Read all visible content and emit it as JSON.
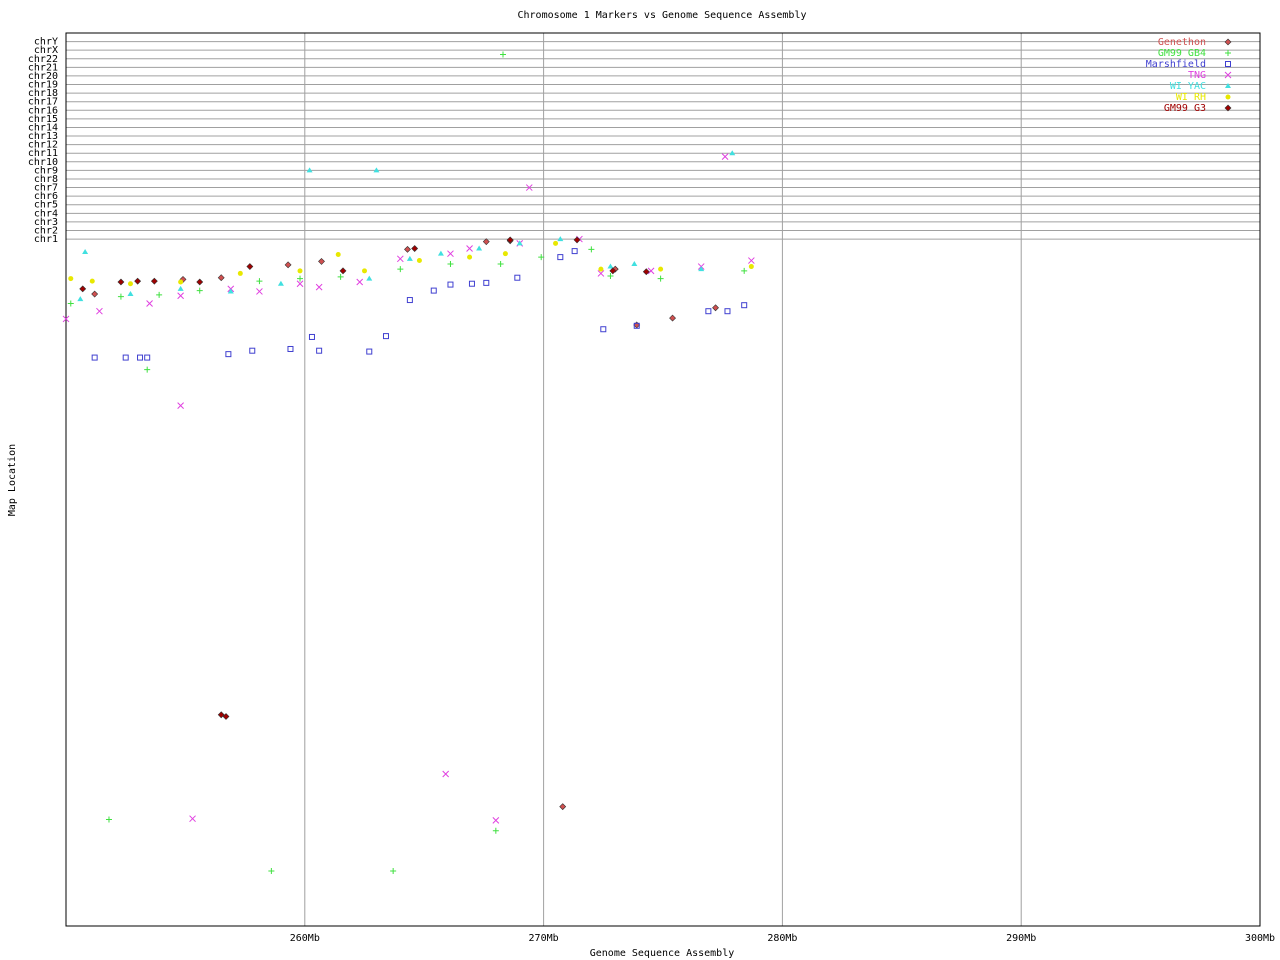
{
  "chart_data": {
    "type": "scatter",
    "title": "Chromosome 1 Markers vs Genome Sequence Assembly",
    "xlabel": "Genome Sequence Assembly",
    "ylabel": "Map Location",
    "xlim": [
      250,
      300
    ],
    "xticks": [
      {
        "value": 260,
        "label": "260Mb"
      },
      {
        "value": 270,
        "label": "270Mb"
      },
      {
        "value": 280,
        "label": "280Mb"
      },
      {
        "value": 290,
        "label": "290Mb"
      },
      {
        "value": 300,
        "label": "300Mb"
      }
    ],
    "ylim": [
      0,
      104
    ],
    "yticks": [
      {
        "value": 80,
        "label": "chr1"
      },
      {
        "value": 81,
        "label": "chr2"
      },
      {
        "value": 82,
        "label": "chr3"
      },
      {
        "value": 83,
        "label": "chr4"
      },
      {
        "value": 84,
        "label": "chr5"
      },
      {
        "value": 85,
        "label": "chr6"
      },
      {
        "value": 86,
        "label": "chr7"
      },
      {
        "value": 87,
        "label": "chr8"
      },
      {
        "value": 88,
        "label": "chr9"
      },
      {
        "value": 89,
        "label": "chr10"
      },
      {
        "value": 90,
        "label": "chr11"
      },
      {
        "value": 91,
        "label": "chr12"
      },
      {
        "value": 92,
        "label": "chr13"
      },
      {
        "value": 93,
        "label": "chr14"
      },
      {
        "value": 94,
        "label": "chr15"
      },
      {
        "value": 95,
        "label": "chr16"
      },
      {
        "value": 96,
        "label": "chr17"
      },
      {
        "value": 97,
        "label": "chr18"
      },
      {
        "value": 98,
        "label": "chr19"
      },
      {
        "value": 99,
        "label": "chr20"
      },
      {
        "value": 100,
        "label": "chr21"
      },
      {
        "value": 101,
        "label": "chr22"
      },
      {
        "value": 102,
        "label": "chrX"
      },
      {
        "value": 103,
        "label": "chrY"
      }
    ],
    "grid": true,
    "legend": "top-right",
    "series": [
      {
        "name": "Genethon",
        "color": "#d05050",
        "marker": "diamond",
        "x": [
          251.2,
          254.9,
          256.5,
          259.3,
          260.7,
          264.3,
          267.6,
          268.6,
          273.0,
          275.4,
          270.8,
          273.9,
          277.2
        ],
        "y": [
          73.6,
          75.3,
          75.5,
          77.0,
          77.4,
          78.8,
          79.7,
          79.8,
          76.5,
          70.8,
          13.9,
          70.0,
          72.0
        ]
      },
      {
        "name": "GM99 GB4",
        "color": "#40e040",
        "marker": "plus",
        "x": [
          250.2,
          252.3,
          253.9,
          255.6,
          258.1,
          259.8,
          261.5,
          264.0,
          266.1,
          268.2,
          269.9,
          272.0,
          272.8,
          274.9,
          278.4,
          268.3,
          253.4,
          251.8,
          258.6,
          263.7,
          268.0
        ],
        "y": [
          72.5,
          73.3,
          73.5,
          74.0,
          75.1,
          75.4,
          75.6,
          76.5,
          77.1,
          77.1,
          77.9,
          78.8,
          75.7,
          75.4,
          76.3,
          101.5,
          64.8,
          12.4,
          6.4,
          6.4,
          11.1
        ]
      },
      {
        "name": "Marshfield",
        "color": "#4040d0",
        "marker": "square",
        "x": [
          251.2,
          252.5,
          253.1,
          253.4,
          256.8,
          257.8,
          259.4,
          260.3,
          260.6,
          262.7,
          263.4,
          264.4,
          265.4,
          266.1,
          267.0,
          267.6,
          268.9,
          270.7,
          271.3,
          272.5,
          273.9,
          276.9,
          277.7,
          278.4
        ],
        "y": [
          66.2,
          66.2,
          66.2,
          66.2,
          66.6,
          67.0,
          67.2,
          68.6,
          67.0,
          66.9,
          68.7,
          72.9,
          74.0,
          74.7,
          74.8,
          74.9,
          75.5,
          77.9,
          78.6,
          69.5,
          69.9,
          71.6,
          71.6,
          72.3
        ]
      },
      {
        "name": "TNG",
        "color": "#e040e0",
        "marker": "cross",
        "x": [
          250.0,
          251.4,
          253.5,
          254.8,
          256.9,
          258.1,
          259.8,
          260.6,
          262.3,
          264.0,
          266.1,
          266.9,
          269.0,
          271.5,
          272.4,
          274.5,
          276.6,
          278.7,
          254.8,
          255.3,
          265.9,
          268.0,
          269.4,
          277.6
        ],
        "y": [
          70.7,
          71.6,
          72.5,
          73.4,
          74.2,
          73.9,
          74.8,
          74.4,
          75.0,
          77.7,
          78.3,
          78.9,
          79.5,
          80.0,
          76.0,
          76.3,
          76.8,
          77.5,
          60.6,
          12.5,
          17.7,
          12.3,
          86.0,
          89.6
        ]
      },
      {
        "name": "WI YAC",
        "color": "#40e0e0",
        "marker": "triangle",
        "x": [
          250.8,
          250.6,
          252.7,
          254.8,
          256.9,
          259.0,
          262.7,
          264.4,
          265.7,
          267.3,
          269.0,
          270.7,
          272.8,
          273.8,
          276.6,
          260.2,
          263.0,
          277.9
        ],
        "y": [
          78.5,
          73.0,
          73.6,
          74.2,
          73.9,
          74.8,
          75.4,
          77.7,
          78.3,
          78.9,
          79.5,
          80.0,
          76.8,
          77.1,
          76.5,
          88.0,
          88.0,
          90.0
        ]
      },
      {
        "name": "WI RH",
        "color": "#e8e800",
        "marker": "circle",
        "x": [
          250.2,
          251.1,
          252.7,
          254.8,
          257.3,
          259.8,
          261.4,
          262.5,
          264.8,
          266.9,
          268.4,
          270.5,
          272.4,
          274.9,
          278.7
        ],
        "y": [
          75.4,
          75.1,
          74.8,
          75.0,
          76.0,
          76.3,
          78.2,
          76.3,
          77.5,
          77.9,
          78.3,
          79.5,
          76.5,
          76.5,
          76.8
        ]
      },
      {
        "name": "GM99 G3",
        "color": "#a00000",
        "marker": "diamond",
        "x": [
          250.7,
          252.3,
          253.0,
          253.7,
          255.6,
          257.7,
          261.6,
          264.6,
          268.6,
          271.4,
          272.9,
          274.3,
          256.5,
          256.7
        ],
        "y": [
          74.2,
          75.0,
          75.1,
          75.1,
          75.0,
          76.8,
          76.3,
          78.9,
          79.9,
          79.9,
          76.3,
          76.2,
          24.6,
          24.4
        ]
      }
    ]
  }
}
